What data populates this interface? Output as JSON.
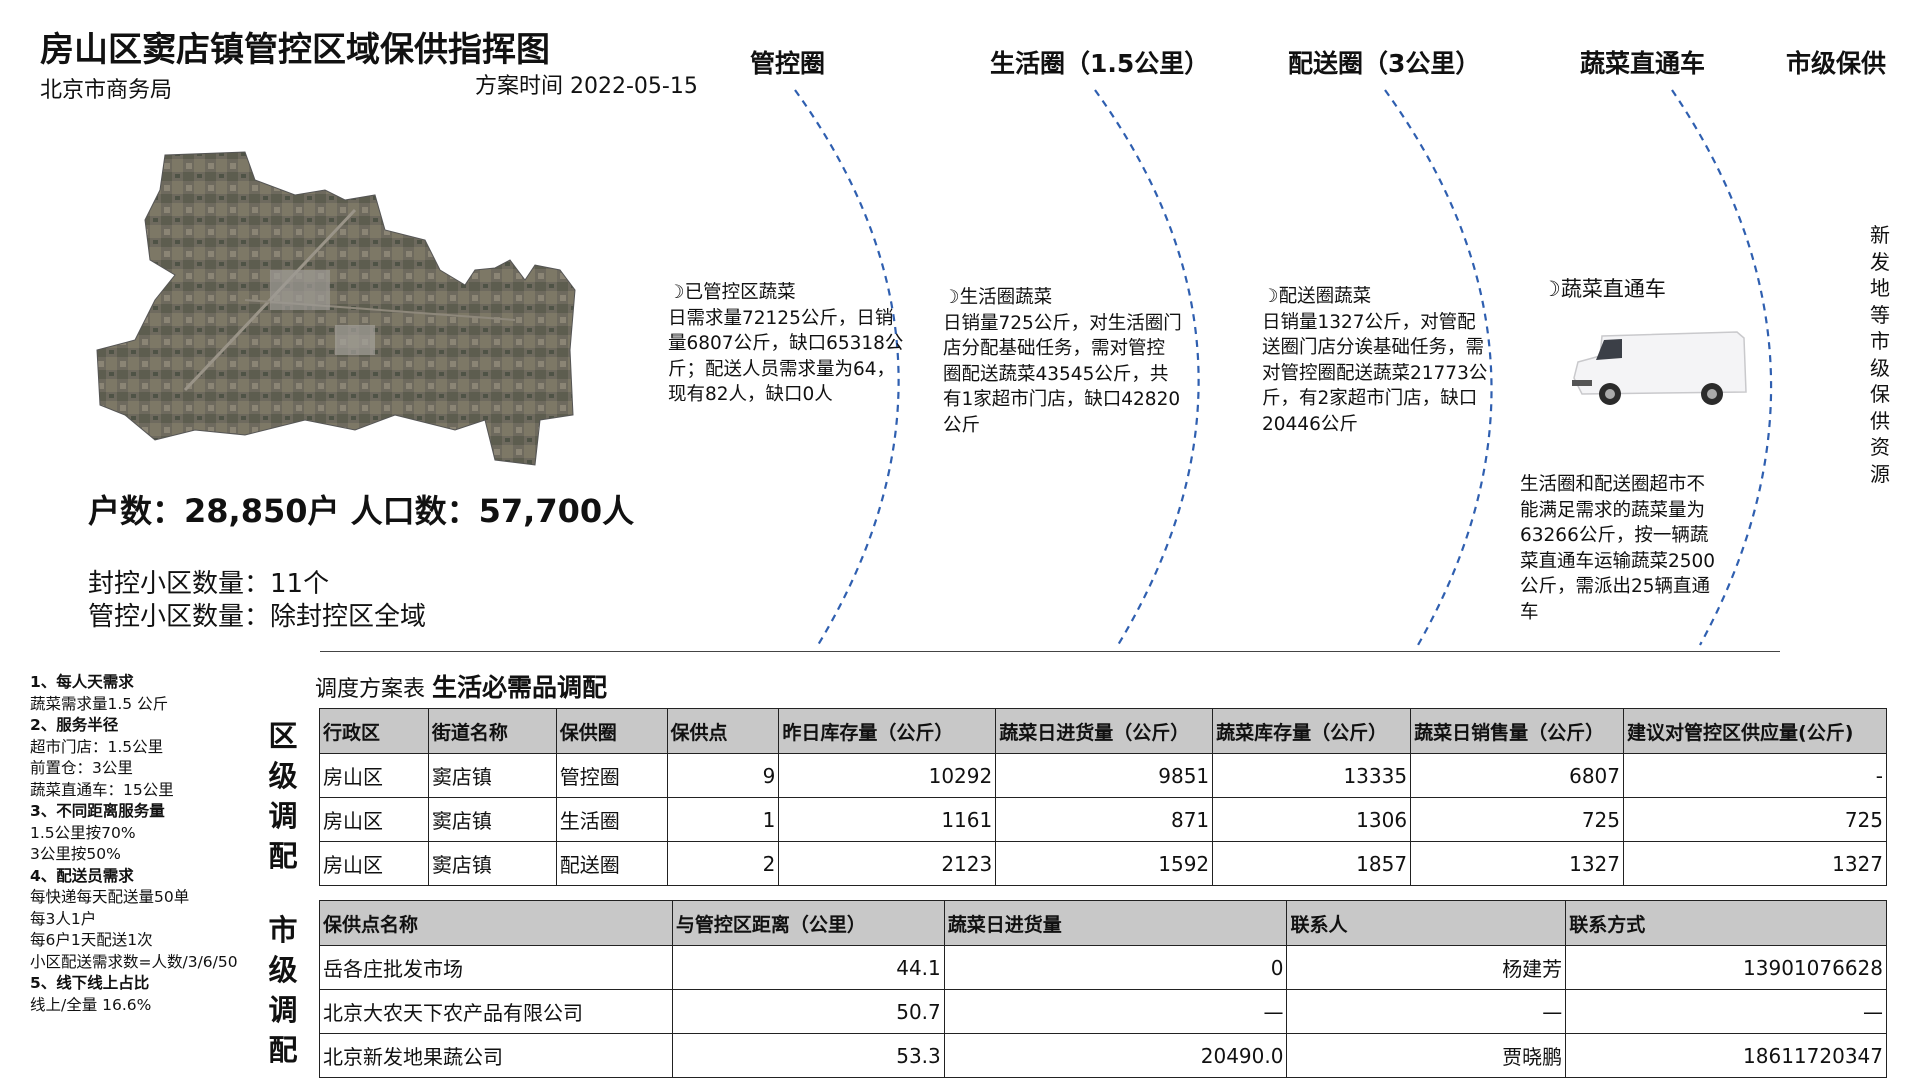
{
  "header": {
    "title": "房山区窦店镇管控区域保供指挥图",
    "subtitle": "北京市商务局",
    "plan_time": "方案时间 2022-05-15"
  },
  "rings": [
    {
      "title": "管控圈",
      "head": "已管控区蔬菜",
      "body": "日需求量72125公斤，日销量6807公斤，缺口65318公斤；配送人员需求量为64，现有82人，缺口0人"
    },
    {
      "title": "生活圈（1.5公里）",
      "head": "生活圈蔬菜",
      "body": "日销量725公斤，对生活圈门店分配基础任务，需对管控圈配送蔬菜43545公斤，共有1家超市门店，缺口42820公斤"
    },
    {
      "title": "配送圈（3公里）",
      "head": "配送圈蔬菜",
      "body": "日销量1327公斤，对管配送圈门店分诶基础任务，需对管控圈配送蔬菜21773公斤，有2家超市门店，缺口20446公斤"
    },
    {
      "title": "蔬菜直通车",
      "head": "蔬菜直通车",
      "body": "生活圈和配送圈超市不能满足需求的蔬菜量为63266公斤，按一辆蔬菜直通车运输蔬菜2500公斤，需派出25辆直通车"
    },
    {
      "title": "市级保供",
      "vertical": "新发地等市级保供资源"
    }
  ],
  "stats": {
    "households_population": "户数：28,850户 人口数：57,700人",
    "sealed": "封控小区数量：11个",
    "controlled": "管控小区数量：除封控区全域"
  },
  "notes": [
    {
      "text": "1、每人天需求",
      "bold": true
    },
    {
      "text": "蔬菜需求量1.5 公斤"
    },
    {
      "text": "2、服务半径",
      "bold": true
    },
    {
      "text": "超市门店：1.5公里"
    },
    {
      "text": "前置仓：3公里"
    },
    {
      "text": "蔬菜直通车：15公里"
    },
    {
      "text": "3、不同距离服务量",
      "bold": true
    },
    {
      "text": "1.5公里按70%"
    },
    {
      "text": "3公里按50%"
    },
    {
      "text": "4、配送员需求",
      "bold": true
    },
    {
      "text": "每快递每天配送量50单"
    },
    {
      "text": "每3人1户"
    },
    {
      "text": "每6户1天配送1次"
    },
    {
      "text": "小区配送需求数=人数/3/6/50"
    },
    {
      "text": "5、线下线上占比",
      "bold": true
    },
    {
      "text": "线上/全量 16.6%"
    }
  ],
  "table_caption": {
    "prefix": "调度方案表 ",
    "bold": "生活必需品调配"
  },
  "district_label": "区级调配",
  "city_label": "市级调配",
  "district_table": {
    "headers": [
      "行政区",
      "街道名称",
      "保供圈",
      "保供点",
      "昨日库存量（公斤）",
      "蔬菜日进货量（公斤）",
      "蔬菜库存量（公斤）",
      "蔬菜日销售量（公斤）",
      "建议对管控区供应量(公斤)"
    ],
    "rows": [
      [
        "房山区",
        "窦店镇",
        "管控圈",
        "9",
        "10292",
        "9851",
        "13335",
        "6807",
        "-"
      ],
      [
        "房山区",
        "窦店镇",
        "生活圈",
        "1",
        "1161",
        "871",
        "1306",
        "725",
        "725"
      ],
      [
        "房山区",
        "窦店镇",
        "配送圈",
        "2",
        "2123",
        "1592",
        "1857",
        "1327",
        "1327"
      ]
    ]
  },
  "city_table": {
    "headers": [
      "保供点名称",
      "与管控区距离（公里）",
      "蔬菜日进货量",
      "联系人",
      "联系方式"
    ],
    "rows": [
      [
        "岳各庄批发市场",
        "44.1",
        "0",
        "杨建芳",
        "13901076628"
      ],
      [
        "北京大农天下农产品有限公司",
        "50.7",
        "—",
        "—",
        "—"
      ],
      [
        "北京新发地果蔬公司",
        "53.3",
        "20490.0",
        "贾晓鹏",
        "18611720347"
      ]
    ]
  },
  "colors": {
    "dash": "#2f5fb0",
    "header_bg": "#c8c8c8"
  },
  "icons": [
    "moon-icon",
    "van-image",
    "aerial-map-image"
  ]
}
